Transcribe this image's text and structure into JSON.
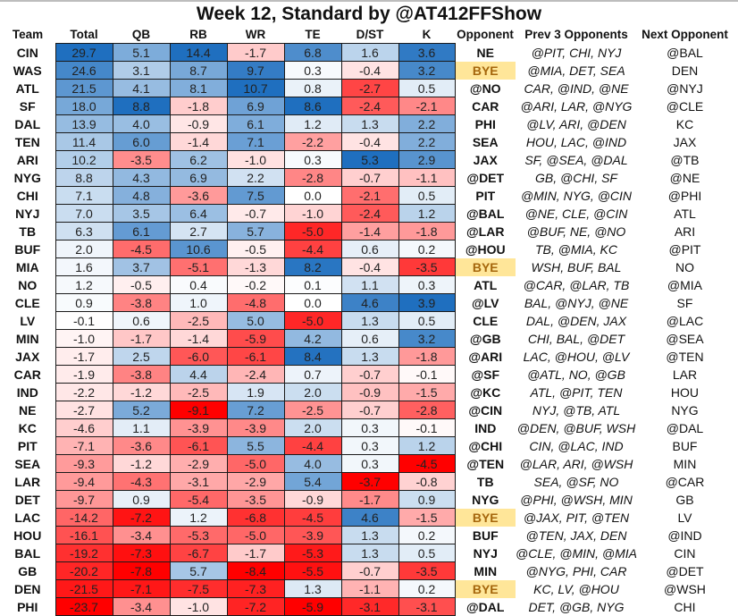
{
  "title": "Week 12, Standard by @AT412FFShow",
  "headers": [
    "Team",
    "Total",
    "QB",
    "RB",
    "WR",
    "TE",
    "D/ST",
    "K",
    "Opponent",
    "Prev  3 Opponents",
    "Next Opponent"
  ],
  "colors": {
    "positive_max": "#1f6fbf",
    "neutral": "#ffffff",
    "negative_max": "#ff0000",
    "bye_fill": "#ffe699",
    "bye_text": "#a5660c"
  },
  "chart_data": {
    "type": "heatmap",
    "title": "Week 12, Standard by @AT412FFShow",
    "columns": [
      "Total",
      "QB",
      "RB",
      "WR",
      "TE",
      "D/ST",
      "K"
    ],
    "rows": [
      {
        "team": "CIN",
        "values": [
          29.7,
          5.1,
          14.4,
          -1.7,
          6.8,
          1.6,
          3.6
        ],
        "opponent": "NE",
        "bye": false,
        "prev3": "@PIT, CHI, NYJ",
        "next": "@BAL"
      },
      {
        "team": "WAS",
        "values": [
          24.6,
          3.1,
          8.7,
          9.7,
          0.3,
          -0.4,
          3.2
        ],
        "opponent": "BYE",
        "bye": true,
        "prev3": "@MIA, DET, SEA",
        "next": "DEN"
      },
      {
        "team": "ATL",
        "values": [
          21.5,
          4.1,
          8.1,
          10.7,
          0.8,
          -2.7,
          0.5
        ],
        "opponent": "@NO",
        "bye": false,
        "prev3": "CAR, @IND, @NE",
        "next": "@NYJ"
      },
      {
        "team": "SF",
        "values": [
          18.0,
          8.8,
          -1.8,
          6.9,
          8.6,
          -2.4,
          -2.1
        ],
        "opponent": "CAR",
        "bye": false,
        "prev3": "@ARI, LAR, @NYG",
        "next": "@CLE"
      },
      {
        "team": "DAL",
        "values": [
          13.9,
          4.0,
          -0.9,
          6.1,
          1.2,
          1.3,
          2.2
        ],
        "opponent": "PHI",
        "bye": false,
        "prev3": "@LV, ARI, @DEN",
        "next": "KC"
      },
      {
        "team": "TEN",
        "values": [
          11.4,
          6.0,
          -1.4,
          7.1,
          -2.2,
          -0.4,
          2.2
        ],
        "opponent": "SEA",
        "bye": false,
        "prev3": "HOU, LAC, @IND",
        "next": "JAX"
      },
      {
        "team": "ARI",
        "values": [
          10.2,
          -3.5,
          6.2,
          -1.0,
          0.3,
          5.3,
          2.9
        ],
        "opponent": "JAX",
        "bye": false,
        "prev3": "SF, @SEA, @DAL",
        "next": "@TB"
      },
      {
        "team": "NYG",
        "values": [
          8.8,
          4.3,
          6.9,
          2.2,
          -2.8,
          -0.7,
          -1.1
        ],
        "opponent": "@DET",
        "bye": false,
        "prev3": "GB, @CHI, SF",
        "next": "@NE"
      },
      {
        "team": "CHI",
        "values": [
          7.1,
          4.8,
          -3.6,
          7.5,
          0.0,
          -2.1,
          0.5
        ],
        "opponent": "PIT",
        "bye": false,
        "prev3": "@MIN, NYG, @CIN",
        "next": "@PHI"
      },
      {
        "team": "NYJ",
        "values": [
          7.0,
          3.5,
          6.4,
          -0.7,
          -1.0,
          -2.4,
          1.2
        ],
        "opponent": "@BAL",
        "bye": false,
        "prev3": "@NE, CLE, @CIN",
        "next": "ATL"
      },
      {
        "team": "TB",
        "values": [
          6.3,
          6.1,
          2.7,
          5.7,
          -5.0,
          -1.4,
          -1.8
        ],
        "opponent": "@LAR",
        "bye": false,
        "prev3": "@BUF, NE, @NO",
        "next": "ARI"
      },
      {
        "team": "BUF",
        "values": [
          2.0,
          -4.5,
          10.6,
          -0.5,
          -4.4,
          0.6,
          0.2
        ],
        "opponent": "@HOU",
        "bye": false,
        "prev3": "TB, @MIA, KC",
        "next": "@PIT"
      },
      {
        "team": "MIA",
        "values": [
          1.6,
          3.7,
          -5.1,
          -1.3,
          8.2,
          -0.4,
          -3.5
        ],
        "opponent": "BYE",
        "bye": true,
        "prev3": "WSH, BUF, BAL",
        "next": "NO"
      },
      {
        "team": "NO",
        "values": [
          1.2,
          -0.5,
          0.4,
          -0.2,
          0.1,
          1.1,
          0.3
        ],
        "opponent": "ATL",
        "bye": false,
        "prev3": "@CAR, @LAR, TB",
        "next": "@MIA"
      },
      {
        "team": "CLE",
        "values": [
          0.9,
          -3.8,
          1.0,
          -4.8,
          0.0,
          4.6,
          3.9
        ],
        "opponent": "@LV",
        "bye": false,
        "prev3": "BAL, @NYJ, @NE",
        "next": "SF"
      },
      {
        "team": "LV",
        "values": [
          -0.1,
          0.6,
          -2.5,
          5.0,
          -5.0,
          1.3,
          0.5
        ],
        "opponent": "CLE",
        "bye": false,
        "prev3": "DAL, @DEN, JAX",
        "next": "@LAC"
      },
      {
        "team": "MIN",
        "values": [
          -1.0,
          -1.7,
          -1.4,
          -5.9,
          4.2,
          0.6,
          3.2
        ],
        "opponent": "@GB",
        "bye": false,
        "prev3": "CHI, BAL, @DET",
        "next": "@SEA"
      },
      {
        "team": "JAX",
        "values": [
          -1.7,
          2.5,
          -6.0,
          -6.1,
          8.4,
          1.3,
          -1.8
        ],
        "opponent": "@ARI",
        "bye": false,
        "prev3": "LAC, @HOU, @LV",
        "next": "@TEN"
      },
      {
        "team": "CAR",
        "values": [
          -1.9,
          -3.8,
          4.4,
          -2.4,
          0.7,
          -0.7,
          -0.1
        ],
        "opponent": "@SF",
        "bye": false,
        "prev3": "@ATL, NO, @GB",
        "next": "LAR"
      },
      {
        "team": "IND",
        "values": [
          -2.2,
          -1.2,
          -2.5,
          1.9,
          2.0,
          -0.9,
          -1.5
        ],
        "opponent": "@KC",
        "bye": false,
        "prev3": "ATL, @PIT, TEN",
        "next": "HOU"
      },
      {
        "team": "NE",
        "values": [
          -2.7,
          5.2,
          -9.1,
          7.2,
          -2.5,
          -0.7,
          -2.8
        ],
        "opponent": "@CIN",
        "bye": false,
        "prev3": "NYJ, @TB, ATL",
        "next": "NYG"
      },
      {
        "team": "KC",
        "values": [
          -4.6,
          1.1,
          -3.9,
          -3.9,
          2.0,
          0.3,
          -0.1
        ],
        "opponent": "IND",
        "bye": false,
        "prev3": "@DEN, @BUF, WSH",
        "next": "@DAL"
      },
      {
        "team": "PIT",
        "values": [
          -7.1,
          -3.6,
          -6.1,
          5.5,
          -4.4,
          0.3,
          1.2
        ],
        "opponent": "@CHI",
        "bye": false,
        "prev3": "CIN, @LAC, IND",
        "next": "BUF"
      },
      {
        "team": "SEA",
        "values": [
          -9.3,
          -1.2,
          -2.9,
          -5.0,
          4.0,
          0.3,
          -4.5
        ],
        "opponent": "@TEN",
        "bye": false,
        "prev3": "@LAR, ARI, @WSH",
        "next": "MIN"
      },
      {
        "team": "LAR",
        "values": [
          -9.4,
          -4.3,
          -3.1,
          -2.9,
          5.4,
          -3.7,
          -0.8
        ],
        "opponent": "TB",
        "bye": false,
        "prev3": "SEA, @SF, NO",
        "next": "@CAR"
      },
      {
        "team": "DET",
        "values": [
          -9.7,
          0.9,
          -5.4,
          -3.5,
          -0.9,
          -1.7,
          0.9
        ],
        "opponent": "NYG",
        "bye": false,
        "prev3": "@PHI, @WSH, MIN",
        "next": "GB"
      },
      {
        "team": "LAC",
        "values": [
          -14.2,
          -7.2,
          1.2,
          -6.8,
          -4.5,
          4.6,
          -1.5
        ],
        "opponent": "BYE",
        "bye": true,
        "prev3": "@JAX, PIT, @TEN",
        "next": "LV"
      },
      {
        "team": "HOU",
        "values": [
          -16.1,
          -3.4,
          -5.3,
          -5.0,
          -3.9,
          1.3,
          0.2
        ],
        "opponent": "BUF",
        "bye": false,
        "prev3": "@TEN, JAX, DEN",
        "next": "@IND"
      },
      {
        "team": "BAL",
        "values": [
          -19.2,
          -7.3,
          -6.7,
          -1.7,
          -5.3,
          1.3,
          0.5
        ],
        "opponent": "NYJ",
        "bye": false,
        "prev3": "@CLE, @MIN, @MIA",
        "next": "CIN"
      },
      {
        "team": "GB",
        "values": [
          -20.2,
          -7.8,
          5.7,
          -8.4,
          -5.5,
          -0.7,
          -3.5
        ],
        "opponent": "MIN",
        "bye": false,
        "prev3": "@NYG, PHI, CAR",
        "next": "@DET"
      },
      {
        "team": "DEN",
        "values": [
          -21.5,
          -7.1,
          -7.5,
          -7.3,
          1.3,
          -1.1,
          0.2
        ],
        "opponent": "BYE",
        "bye": true,
        "prev3": "KC, LV, @HOU",
        "next": "@WSH"
      },
      {
        "team": "PHI",
        "values": [
          -23.7,
          -3.4,
          -1.0,
          -7.2,
          -5.9,
          -3.1,
          -3.1
        ],
        "opponent": "@DAL",
        "bye": false,
        "prev3": "DET, @GB, NYG",
        "next": "CHI"
      }
    ]
  }
}
